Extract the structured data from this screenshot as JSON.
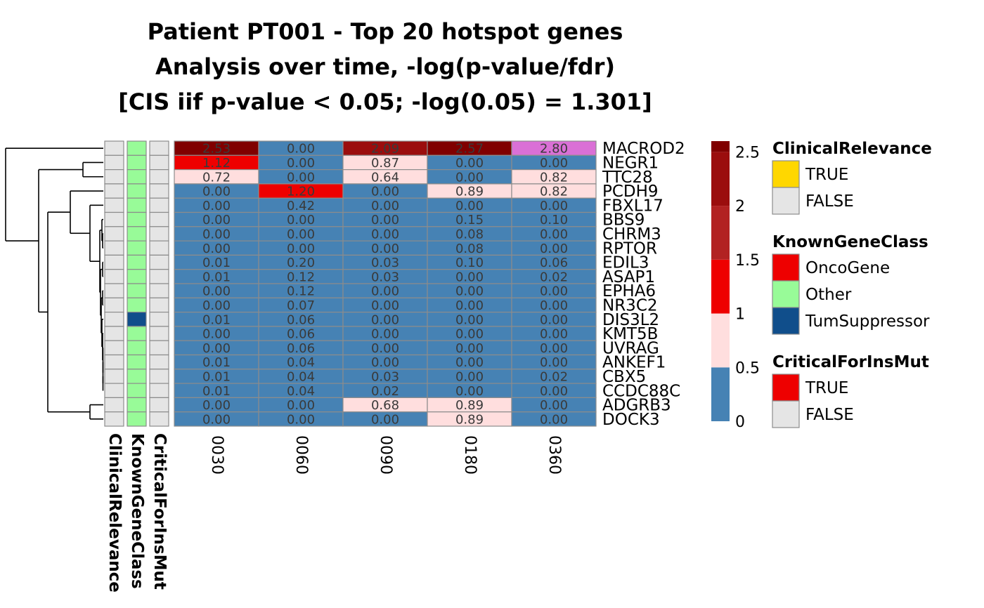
{
  "chart_data": {
    "type": "heatmap",
    "title_lines": [
      "Patient PT001 - Top 20 hotspot genes",
      "Analysis over time, -log(p-value/fdr)",
      "[CIS iif p-value < 0.05; -log(0.05) = 1.301]"
    ],
    "columns": [
      "0030",
      "0060",
      "0090",
      "0180",
      "0360"
    ],
    "rows": [
      "MACROD2",
      "NEGR1",
      "TTC28",
      "PCDH9",
      "FBXL17",
      "BBS9",
      "CHRM3",
      "RPTOR",
      "EDIL3",
      "ASAP1",
      "EPHA6",
      "NR3C2",
      "DIS3L2",
      "KMT5B",
      "UVRAG",
      "ANKEF1",
      "CBX5",
      "CCDC88C",
      "ADGRB3",
      "DOCK3"
    ],
    "values": [
      [
        2.53,
        0.0,
        2.09,
        2.57,
        2.8
      ],
      [
        1.12,
        0.0,
        0.87,
        0.0,
        0.0
      ],
      [
        0.72,
        0.0,
        0.64,
        0.0,
        0.82
      ],
      [
        0.0,
        1.2,
        0.0,
        0.89,
        0.82
      ],
      [
        0.0,
        0.42,
        0.0,
        0.0,
        0.0
      ],
      [
        0.0,
        0.0,
        0.0,
        0.15,
        0.1
      ],
      [
        0.0,
        0.0,
        0.0,
        0.08,
        0.0
      ],
      [
        0.0,
        0.0,
        0.0,
        0.08,
        0.0
      ],
      [
        0.01,
        0.2,
        0.03,
        0.1,
        0.06
      ],
      [
        0.01,
        0.12,
        0.03,
        0.0,
        0.02
      ],
      [
        0.0,
        0.12,
        0.0,
        0.0,
        0.0
      ],
      [
        0.0,
        0.07,
        0.0,
        0.0,
        0.0
      ],
      [
        0.01,
        0.06,
        0.0,
        0.0,
        0.0
      ],
      [
        0.0,
        0.06,
        0.0,
        0.0,
        0.0
      ],
      [
        0.0,
        0.06,
        0.0,
        0.0,
        0.0
      ],
      [
        0.01,
        0.04,
        0.0,
        0.0,
        0.0
      ],
      [
        0.01,
        0.04,
        0.03,
        0.0,
        0.02
      ],
      [
        0.01,
        0.04,
        0.02,
        0.0,
        0.0
      ],
      [
        0.0,
        0.0,
        0.68,
        0.89,
        0.0
      ],
      [
        0.0,
        0.0,
        0.0,
        0.89,
        0.0
      ]
    ],
    "cell_value_labels": [
      [
        "2.53",
        "0.00",
        "2.09",
        "2.57",
        "2.80"
      ],
      [
        "1.12",
        "0.00",
        "0.87",
        "0.00",
        "0.00"
      ],
      [
        "0.72",
        "0.00",
        "0.64",
        "0.00",
        "0.82"
      ],
      [
        "0.00",
        "1.20",
        "0.00",
        "0.89",
        "0.82"
      ],
      [
        "0.00",
        "0.42",
        "0.00",
        "0.00",
        "0.00"
      ],
      [
        "0.00",
        "0.00",
        "0.00",
        "0.15",
        "0.10"
      ],
      [
        "0.00",
        "0.00",
        "0.00",
        "0.08",
        "0.00"
      ],
      [
        "0.00",
        "0.00",
        "0.00",
        "0.08",
        "0.00"
      ],
      [
        "0.01",
        "0.20",
        "0.03",
        "0.10",
        "0.06"
      ],
      [
        "0.01",
        "0.12",
        "0.03",
        "0.00",
        "0.02"
      ],
      [
        "0.00",
        "0.12",
        "0.00",
        "0.00",
        "0.00"
      ],
      [
        "0.00",
        "0.07",
        "0.00",
        "0.00",
        "0.00"
      ],
      [
        "0.01",
        "0.06",
        "0.00",
        "0.00",
        "0.00"
      ],
      [
        "0.00",
        "0.06",
        "0.00",
        "0.00",
        "0.00"
      ],
      [
        "0.00",
        "0.06",
        "0.00",
        "0.00",
        "0.00"
      ],
      [
        "0.01",
        "0.04",
        "0.00",
        "0.00",
        "0.00"
      ],
      [
        "0.01",
        "0.04",
        "0.03",
        "0.00",
        "0.02"
      ],
      [
        "0.01",
        "0.04",
        "0.02",
        "0.00",
        "0.00"
      ],
      [
        "0.00",
        "0.00",
        "0.68",
        "0.89",
        "0.00"
      ],
      [
        "0.00",
        "0.00",
        "0.00",
        "0.89",
        "0.00"
      ]
    ],
    "over_max_color": "#DA70D6",
    "color_scale": {
      "breaks": [
        0,
        0.5,
        1,
        1.5,
        2,
        2.5,
        2.6
      ],
      "colors": [
        "#4682B4",
        "#FFDEDE",
        "#EE0000",
        "#B22222",
        "#9B0D0D",
        "#800000"
      ],
      "tick_values": [
        0,
        0.5,
        1,
        1.5,
        2,
        2.5
      ],
      "tick_labels": [
        "0",
        "0.5",
        "1",
        "1.5",
        "2",
        "2.5"
      ]
    },
    "annotations": {
      "names": [
        "ClinicalRelevance",
        "KnownGeneClass",
        "CriticalForInsMut"
      ],
      "axis_labels": [
        "ClinicalRelevance",
        "KnownGeneClass",
        "CriticalForInsMut"
      ],
      "ClinicalRelevance": [
        "FALSE",
        "FALSE",
        "FALSE",
        "FALSE",
        "FALSE",
        "FALSE",
        "FALSE",
        "FALSE",
        "FALSE",
        "FALSE",
        "FALSE",
        "FALSE",
        "FALSE",
        "FALSE",
        "FALSE",
        "FALSE",
        "FALSE",
        "FALSE",
        "FALSE",
        "FALSE"
      ],
      "KnownGeneClass": [
        "Other",
        "Other",
        "Other",
        "Other",
        "Other",
        "Other",
        "Other",
        "Other",
        "Other",
        "Other",
        "Other",
        "Other",
        "TumSuppressor",
        "Other",
        "Other",
        "Other",
        "Other",
        "Other",
        "Other",
        "Other"
      ],
      "CriticalForInsMut": [
        "FALSE",
        "FALSE",
        "FALSE",
        "FALSE",
        "FALSE",
        "FALSE",
        "FALSE",
        "FALSE",
        "FALSE",
        "FALSE",
        "FALSE",
        "FALSE",
        "FALSE",
        "FALSE",
        "FALSE",
        "FALSE",
        "FALSE",
        "FALSE",
        "FALSE",
        "FALSE"
      ]
    },
    "legends": [
      {
        "title": "ClinicalRelevance",
        "items": [
          {
            "label": "TRUE",
            "color": "#FFD700"
          },
          {
            "label": "FALSE",
            "color": "#E5E5E5"
          }
        ]
      },
      {
        "title": "KnownGeneClass",
        "items": [
          {
            "label": "OncoGene",
            "color": "#EE0000"
          },
          {
            "label": "Other",
            "color": "#98FB98"
          },
          {
            "label": "TumSuppressor",
            "color": "#104E8B"
          }
        ]
      },
      {
        "title": "CriticalForInsMut",
        "items": [
          {
            "label": "TRUE",
            "color": "#EE0000"
          },
          {
            "label": "FALSE",
            "color": "#E5E5E5"
          }
        ]
      }
    ],
    "grid": true,
    "row_dendrogram": true
  }
}
